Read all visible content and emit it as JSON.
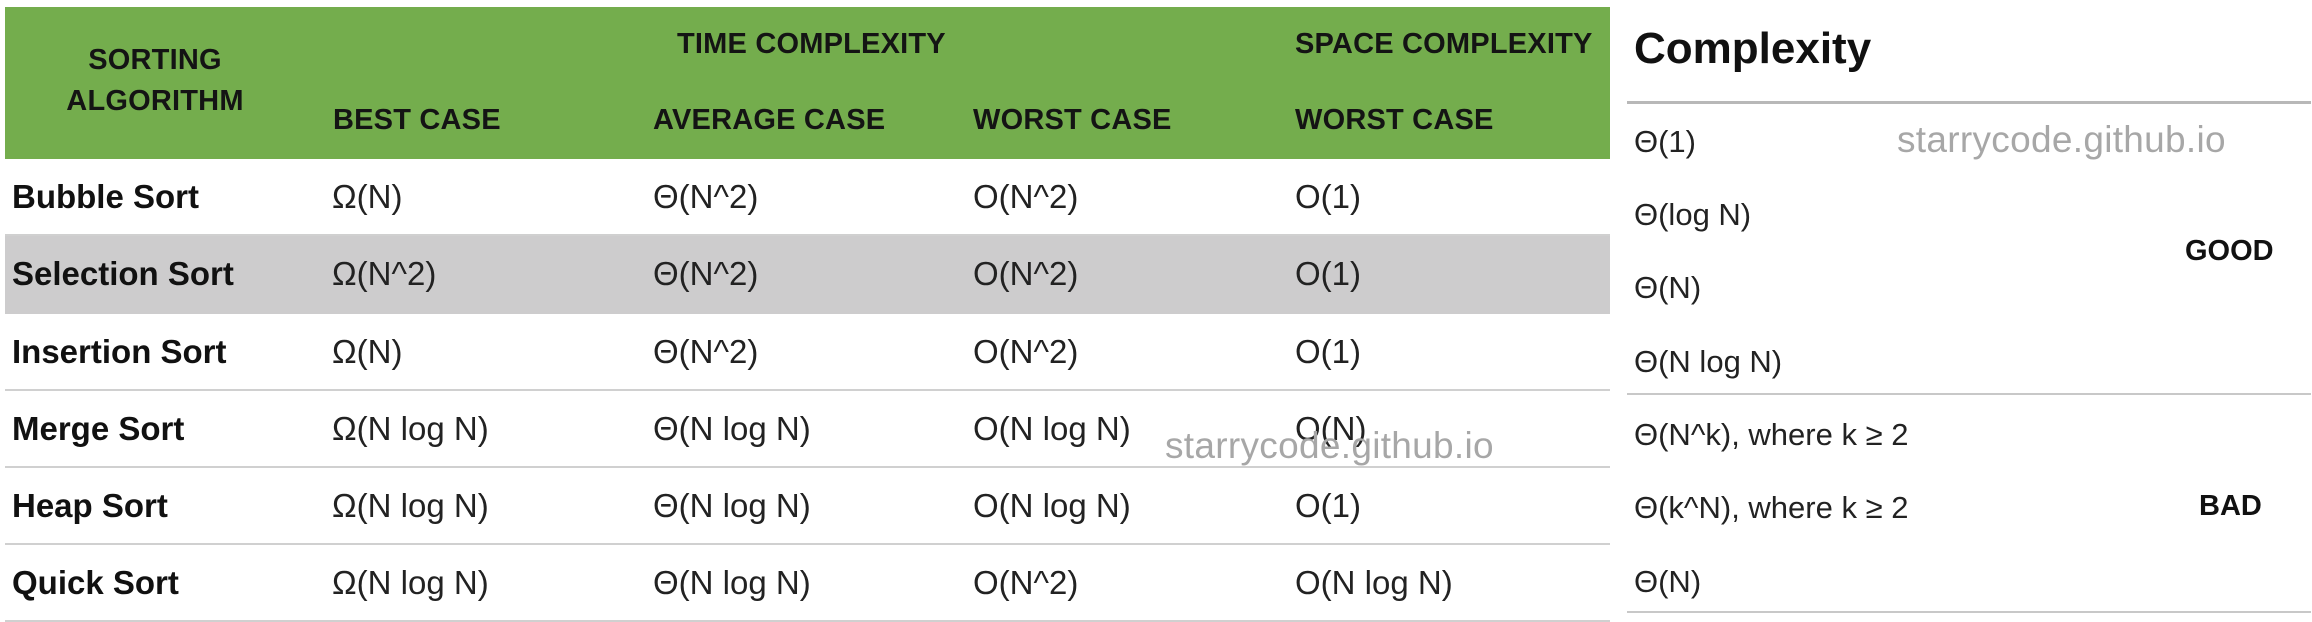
{
  "table": {
    "headers": {
      "algorithm": "SORTING ALGORITHM",
      "time_complexity": "TIME COMPLEXITY",
      "space_complexity": "SPACE COMPLEXITY",
      "best_case": "BEST CASE",
      "average_case": "AVERAGE CASE",
      "worst_case": "WORST CASE",
      "space_worst_case": "WORST CASE"
    },
    "header_color": "#74ad4d",
    "highlight_color": "#cdcccd",
    "rows": [
      {
        "name": "Bubble Sort",
        "best": "Ω(N)",
        "average": "Θ(N^2)",
        "worst": "O(N^2)",
        "space": "O(1)"
      },
      {
        "name": "Selection Sort",
        "best": "Ω(N^2)",
        "average": "Θ(N^2)",
        "worst": "O(N^2)",
        "space": "O(1)"
      },
      {
        "name": "Insertion Sort",
        "best": "Ω(N)",
        "average": "Θ(N^2)",
        "worst": "O(N^2)",
        "space": "O(1)"
      },
      {
        "name": "Merge Sort",
        "best": "Ω(N log N)",
        "average": "Θ(N log N)",
        "worst": "O(N log N)",
        "space": "O(N)"
      },
      {
        "name": "Heap Sort",
        "best": "Ω(N log N)",
        "average": "Θ(N log N)",
        "worst": "O(N log N)",
        "space": "O(1)"
      },
      {
        "name": "Quick Sort",
        "best": "Ω(N log N)",
        "average": "Θ(N log N)",
        "worst": "O(N^2)",
        "space": "O(N log N)"
      }
    ]
  },
  "legend": {
    "title": "Complexity",
    "good_label": "GOOD",
    "bad_label": "BAD",
    "good_items": [
      "Θ(1)",
      "Θ(log N)",
      "Θ(N)",
      "Θ(N log N)"
    ],
    "bad_items": [
      "Θ(N^k), where k ≥ 2",
      "Θ(k^N), where k ≥ 2",
      "Θ(N)"
    ]
  },
  "watermark": "starrycode.github.io"
}
